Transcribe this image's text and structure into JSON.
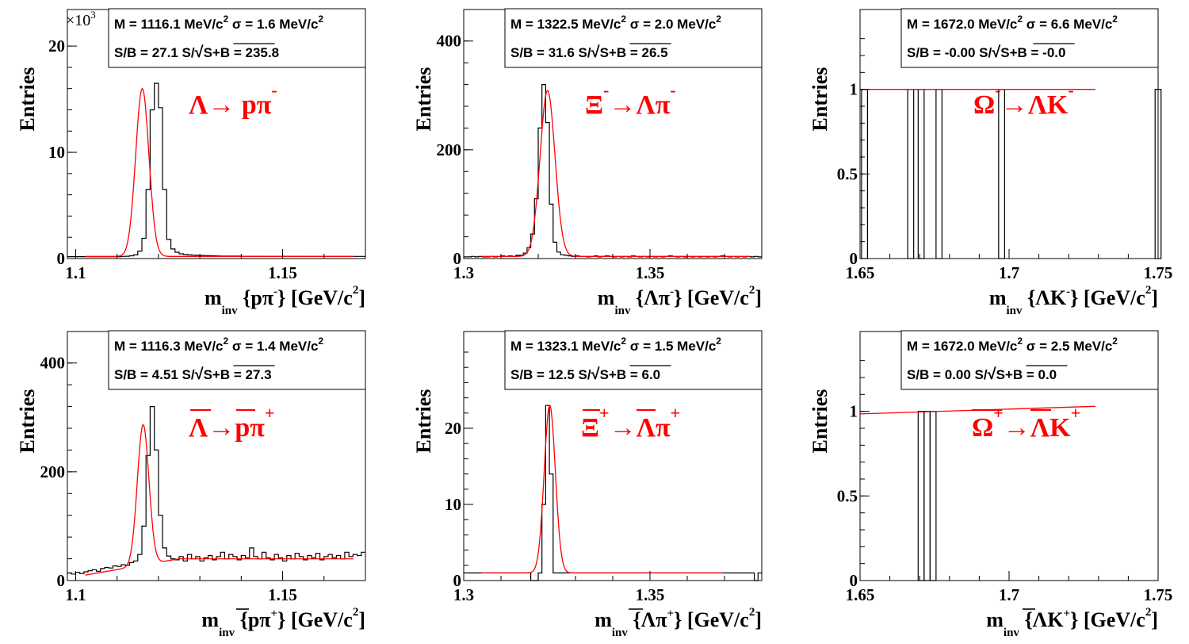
{
  "chart_data": [
    {
      "type": "line",
      "id": "p1",
      "xlim": [
        1.098,
        1.17
      ],
      "ylim": [
        0,
        21500
      ],
      "xticks": [
        {
          "v": 1.1,
          "label": "1.1"
        },
        {
          "v": 1.15,
          "label": "1.15"
        }
      ],
      "yticks": [
        {
          "v": 0,
          "label": "0"
        },
        {
          "v": 10000,
          "label": "10"
        },
        {
          "v": 20000,
          "label": "20"
        }
      ],
      "multiplier": "×10",
      "multiplier_exp": "3",
      "ylabel": "Entries",
      "xlabel": {
        "m": "m",
        "sub": "inv",
        "pre": "{pπ",
        "sup": "-",
        "post": "} [GeV/c",
        "sup2": "2",
        "end": "]"
      },
      "box": {
        "line1_a": "M = 1116.1 MeV/c",
        "line1_sup": "2",
        "line1_b": " σ = 1.6 MeV/c",
        "line1_sup2": "2",
        "line2_a": "S/B = 27.1   S/",
        "line2_b": "S+B = 235.8"
      },
      "decay": {
        "parts": [
          {
            "t": "Λ→ pπ"
          },
          {
            "t": "-",
            "sup": true
          }
        ]
      },
      "fit": {
        "mean": 1.1161,
        "sigma": 0.0016,
        "amp": 15800,
        "bkg": 200
      },
      "hist": {
        "bin_width": 0.001,
        "values": [
          180,
          180,
          180,
          180,
          180,
          180,
          180,
          180,
          180,
          180,
          180,
          180,
          180,
          200,
          220,
          260,
          340,
          700,
          1900,
          6500,
          14000,
          16500,
          14200,
          6500,
          1800,
          900,
          600,
          450,
          380,
          340,
          320,
          300,
          290,
          280,
          270,
          260,
          250,
          240,
          240,
          230,
          230,
          230,
          220,
          220,
          220,
          220,
          220,
          210,
          210,
          210,
          210,
          210,
          210,
          210,
          210,
          210,
          210,
          210,
          200,
          200,
          200,
          200,
          200,
          200,
          200,
          200,
          200,
          200,
          200,
          200,
          200,
          200
        ]
      }
    },
    {
      "type": "line",
      "id": "p2",
      "xlim": [
        1.3,
        1.38
      ],
      "ylim": [
        0,
        420
      ],
      "xticks": [
        {
          "v": 1.3,
          "label": "1.3"
        },
        {
          "v": 1.35,
          "label": "1.35"
        }
      ],
      "yticks": [
        {
          "v": 0,
          "label": "0"
        },
        {
          "v": 200,
          "label": "200"
        },
        {
          "v": 400,
          "label": "400"
        }
      ],
      "ylabel": "Entries",
      "xlabel": {
        "m": "m",
        "sub": "inv",
        "pre": "{Λπ",
        "sup": "-",
        "post": "} [GeV/c",
        "sup2": "2",
        "end": "]"
      },
      "box": {
        "line1_a": "M = 1322.5 MeV/c",
        "line1_sup": "2",
        "line1_b": " σ = 2.0 MeV/c",
        "line1_sup2": "2",
        "line2_a": "S/B = 31.6   S/",
        "line2_b": "S+B = 26.5"
      },
      "decay": {
        "parts": [
          {
            "t": "Ξ"
          },
          {
            "t": "-",
            "sup": true
          },
          {
            "t": "→Λπ"
          },
          {
            "t": "-",
            "sup": true
          }
        ]
      },
      "fit": {
        "mean": 1.3225,
        "sigma": 0.002,
        "amp": 305,
        "bkg": 4
      },
      "hist": {
        "bin_width": 0.001,
        "values": [
          3,
          3,
          4,
          3,
          4,
          3,
          3,
          4,
          3,
          4,
          5,
          4,
          5,
          4,
          6,
          6,
          10,
          20,
          45,
          110,
          240,
          320,
          250,
          100,
          30,
          12,
          7,
          6,
          5,
          4,
          5,
          4,
          4,
          3,
          4,
          5,
          3,
          4,
          5,
          4,
          3,
          4,
          3,
          4,
          3,
          5,
          4,
          3,
          4,
          3,
          4,
          3,
          4,
          3,
          4,
          5,
          4,
          3,
          4,
          3,
          4,
          3,
          4,
          3,
          4,
          3,
          4,
          3,
          4,
          5,
          4,
          3,
          4,
          3,
          4,
          3,
          4,
          3,
          4,
          3
        ]
      }
    },
    {
      "type": "line",
      "id": "p3",
      "xlim": [
        1.65,
        1.75
      ],
      "ylim": [
        0,
        1.35
      ],
      "xticks": [
        {
          "v": 1.65,
          "label": "1.65"
        },
        {
          "v": 1.7,
          "label": "1.7"
        },
        {
          "v": 1.75,
          "label": "1.75"
        }
      ],
      "yticks": [
        {
          "v": 0,
          "label": "0"
        },
        {
          "v": 0.5,
          "label": "0.5"
        },
        {
          "v": 1,
          "label": "1"
        }
      ],
      "ylabel": "Entries",
      "xlabel": {
        "m": "m",
        "sub": "inv",
        "pre": "{ΛK",
        "sup": "-",
        "post": "} [GeV/c",
        "sup2": "2",
        "end": "]"
      },
      "box": {
        "line1_a": "M = 1672.0 MeV/c",
        "line1_sup": "2",
        "line1_b": " σ = 6.6 MeV/c",
        "line1_sup2": "2",
        "line2_a": "S/B = -0.00   S/",
        "line2_b": "S+B = -0.0"
      },
      "decay": {
        "parts": [
          {
            "t": "Ω"
          },
          {
            "t": "-",
            "sup": true
          },
          {
            "t": "→ΛK"
          },
          {
            "t": "-",
            "sup": true
          }
        ]
      },
      "fit": {
        "flat": 1.0,
        "x0": 1.65,
        "x1": 1.729
      },
      "bars": [
        [
          1.6505,
          1.6525
        ],
        [
          1.666,
          1.668
        ],
        [
          1.6695,
          1.6715
        ],
        [
          1.6755,
          1.6775
        ],
        [
          1.6965,
          1.6985
        ],
        [
          1.749,
          1.751
        ]
      ]
    },
    {
      "type": "line",
      "id": "p4",
      "xlim": [
        1.098,
        1.17
      ],
      "ylim": [
        0,
        420
      ],
      "xticks": [
        {
          "v": 1.1,
          "label": "1.1"
        },
        {
          "v": 1.15,
          "label": "1.15"
        }
      ],
      "yticks": [
        {
          "v": 0,
          "label": "0"
        },
        {
          "v": 200,
          "label": "200"
        },
        {
          "v": 400,
          "label": "400"
        }
      ],
      "ylabel": "Entries",
      "xlabel": {
        "m": "m",
        "sub": "inv",
        "pre": "{pπ",
        "sup": "+",
        "post": "} [GeV/c",
        "sup2": "2",
        "end": "]"
      },
      "box": {
        "line1_a": "M = 1116.3 MeV/c",
        "line1_sup": "2",
        "line1_b": " σ = 1.4 MeV/c",
        "line1_sup2": "2",
        "line2_a": "S/B = 4.51   S/",
        "line2_b": "S+B = 27.3"
      },
      "decay": {
        "parts": [
          {
            "t": "Λ→pπ"
          },
          {
            "t": "+",
            "sup": true
          }
        ]
      },
      "fit": {
        "mean": 1.1163,
        "sigma": 0.0014,
        "amp": 258,
        "bkg_lo": 10,
        "bkg_hi": 40
      },
      "hist": {
        "bin_width": 0.001,
        "values": [
          14,
          12,
          15,
          13,
          16,
          18,
          20,
          17,
          22,
          24,
          23,
          27,
          26,
          29,
          28,
          33,
          36,
          48,
          100,
          230,
          320,
          240,
          120,
          60,
          45,
          40,
          38,
          44,
          36,
          48,
          40,
          44,
          36,
          42,
          46,
          38,
          44,
          52,
          40,
          48,
          44,
          38,
          46,
          42,
          60,
          44,
          40,
          52,
          42,
          38,
          48,
          42,
          36,
          46,
          40,
          50,
          44,
          38,
          46,
          42,
          50,
          38,
          44,
          48,
          42,
          46,
          40,
          52,
          44,
          48,
          46,
          52
        ]
      }
    },
    {
      "type": "line",
      "id": "p5",
      "xlim": [
        1.3,
        1.38
      ],
      "ylim": [
        0,
        30
      ],
      "xticks": [
        {
          "v": 1.3,
          "label": "1.3"
        },
        {
          "v": 1.35,
          "label": "1.35"
        }
      ],
      "yticks": [
        {
          "v": 0,
          "label": "0"
        },
        {
          "v": 10,
          "label": "10"
        },
        {
          "v": 20,
          "label": "20"
        }
      ],
      "ylabel": "Entries",
      "xlabel": {
        "m": "m",
        "sub": "inv",
        "pre": "{Λπ",
        "sup": "+",
        "post": "} [GeV/c",
        "sup2": "2",
        "end": "]"
      },
      "box": {
        "line1_a": "M = 1323.1 MeV/c",
        "line1_sup": "2",
        "line1_b": " σ = 1.5 MeV/c",
        "line1_sup2": "2",
        "line2_a": "S/B = 12.5   S/",
        "line2_b": "S+B = 6.0"
      },
      "decay": {
        "parts": [
          {
            "t": "Ξ"
          },
          {
            "t": "+",
            "sup": true
          },
          {
            "t": "→Λπ"
          },
          {
            "t": "+",
            "sup": true
          }
        ]
      },
      "fit": {
        "mean": 1.3231,
        "sigma": 0.0015,
        "amp": 22,
        "bkg": 1,
        "x1": 1.3695
      },
      "hist": {
        "bin_width": 0.001,
        "values": [
          1,
          1,
          1,
          1,
          1,
          1,
          1,
          1,
          1,
          1,
          1,
          1,
          1,
          1,
          1,
          1,
          1,
          1,
          0,
          0,
          1,
          10,
          23,
          14,
          1,
          1,
          1,
          1,
          1,
          1,
          1,
          1,
          1,
          1,
          1,
          1,
          1,
          1,
          1,
          1,
          1,
          1,
          1,
          1,
          1,
          1,
          1,
          1,
          1,
          1,
          1,
          1,
          1,
          1,
          1,
          1,
          1,
          1,
          1,
          1,
          1,
          1,
          1,
          1,
          1,
          1,
          1,
          1,
          1,
          1,
          1,
          1,
          1,
          1,
          1,
          1,
          1,
          1,
          0,
          1
        ]
      }
    },
    {
      "type": "line",
      "id": "p6",
      "xlim": [
        1.65,
        1.75
      ],
      "ylim": [
        0,
        1.35
      ],
      "xticks": [
        {
          "v": 1.65,
          "label": "1.65"
        },
        {
          "v": 1.7,
          "label": "1.7"
        },
        {
          "v": 1.75,
          "label": "1.75"
        }
      ],
      "yticks": [
        {
          "v": 0,
          "label": "0"
        },
        {
          "v": 0.5,
          "label": "0.5"
        },
        {
          "v": 1,
          "label": "1"
        }
      ],
      "ylabel": "Entries",
      "xlabel": {
        "m": "m",
        "sub": "inv",
        "pre": "{ΛK",
        "sup": "+",
        "post": "} [GeV/c",
        "sup2": "2",
        "end": "]"
      },
      "box": {
        "line1_a": "M = 1672.0 MeV/c",
        "line1_sup": "2",
        "line1_b": " σ = 2.5 MeV/c",
        "line1_sup2": "2",
        "line2_a": "S/B = 0.00   S/",
        "line2_b": "S+B = 0.0"
      },
      "decay": {
        "parts": [
          {
            "t": "Ω"
          },
          {
            "t": "+",
            "sup": true
          },
          {
            "t": "→ΛK"
          },
          {
            "t": "+",
            "sup": true
          }
        ]
      },
      "fit": {
        "slope_y0": 0.985,
        "slope_y1": 1.03,
        "x0": 1.65,
        "x1": 1.729
      },
      "bars": [
        [
          1.6695,
          1.6715
        ],
        [
          1.6715,
          1.6735
        ],
        [
          1.6735,
          1.6755
        ]
      ]
    }
  ]
}
